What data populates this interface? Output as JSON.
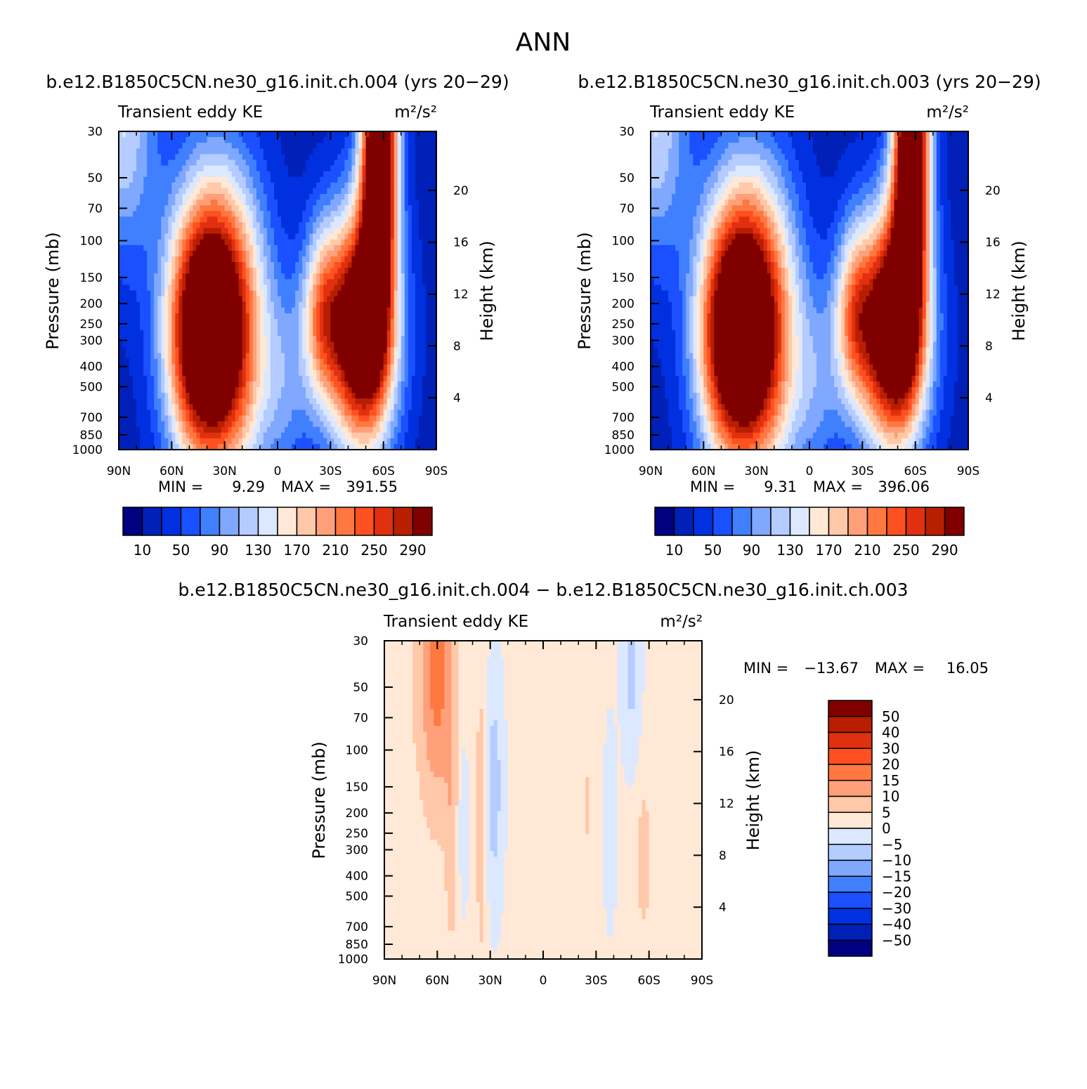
{
  "figure_title": "ANN",
  "colors": {
    "seq_palette": [
      "#000080",
      "#0020b8",
      "#0030e0",
      "#1a50ff",
      "#4080ff",
      "#80a8ff",
      "#b4ccff",
      "#dce8ff",
      "#ffe8d6",
      "#ffc8a8",
      "#ffa07a",
      "#ff7840",
      "#ff5020",
      "#e03010",
      "#b81e00",
      "#800000"
    ],
    "diff_palette": [
      "#000080",
      "#0020b8",
      "#0030e0",
      "#1a50ff",
      "#4080ff",
      "#80a8ff",
      "#b4ccff",
      "#dce8ff",
      "#ffe8d6",
      "#ffc8a8",
      "#ffa07a",
      "#ff7840",
      "#ff5020",
      "#e03010",
      "#b81e00",
      "#800000"
    ]
  },
  "chart_data": [
    {
      "type": "heatmap",
      "panel": "case",
      "title": "b.e12.B1850C5CN.ne30_g16.init.ch.004 (yrs 20−29)",
      "left_label": "Transient eddy KE",
      "units": "m²/s²",
      "xlabel": "",
      "ylabel": "Pressure (mb)",
      "ylabel_right": "Height (km)",
      "x_ticks": [
        "90N",
        "60N",
        "30N",
        "0",
        "30S",
        "60S",
        "90S"
      ],
      "y_ticks": [
        30,
        50,
        70,
        100,
        150,
        200,
        250,
        300,
        400,
        500,
        700,
        850,
        1000
      ],
      "y_ticks_right": [
        20,
        16,
        12,
        8,
        4
      ],
      "ylim": [
        30,
        1000
      ],
      "y_scale": "log",
      "min_label": "MIN =",
      "min_value": "9.29",
      "max_label": "MAX =",
      "max_value": "391.55",
      "levels": [
        10,
        30,
        50,
        70,
        90,
        110,
        130,
        150,
        170,
        190,
        210,
        230,
        250,
        270,
        290
      ],
      "colorbar_labels": [
        "10",
        "50",
        "90",
        "130",
        "170",
        "210",
        "250",
        "290"
      ],
      "features": [
        {
          "lat": 32,
          "p": 245,
          "value": 300,
          "sx": 17,
          "sy": 0.52
        },
        {
          "lat": 46,
          "p": 290,
          "value": 160,
          "sx": 13,
          "sy": 0.45
        },
        {
          "lat": -48,
          "p": 265,
          "value": 350,
          "sx": 13,
          "sy": 0.42
        },
        {
          "lat": -25,
          "p": 225,
          "value": 150,
          "sx": 8,
          "sy": 0.32
        },
        {
          "lat": -58,
          "p": 32,
          "value": 370,
          "sx": 7,
          "sy": 0.5
        },
        {
          "lat": -55,
          "p": 110,
          "value": 70,
          "sx": 5,
          "sy": 0.4
        },
        {
          "lat": 88,
          "p": 30,
          "value": 110,
          "sx": 14,
          "sy": 0.45
        },
        {
          "lat": -5,
          "p": 500,
          "value": 55,
          "sx": 10,
          "sy": 0.35
        },
        {
          "lat": 20,
          "p": 700,
          "value": 20,
          "sx": 12,
          "sy": 0.3
        }
      ]
    },
    {
      "type": "heatmap",
      "panel": "control",
      "title": "b.e12.B1850C5CN.ne30_g16.init.ch.003 (yrs 20−29)",
      "left_label": "Transient eddy KE",
      "units": "m²/s²",
      "xlabel": "",
      "ylabel": "Pressure (mb)",
      "ylabel_right": "Height (km)",
      "x_ticks": [
        "90N",
        "60N",
        "30N",
        "0",
        "30S",
        "60S",
        "90S"
      ],
      "y_ticks": [
        30,
        50,
        70,
        100,
        150,
        200,
        250,
        300,
        400,
        500,
        700,
        850,
        1000
      ],
      "y_ticks_right": [
        20,
        16,
        12,
        8,
        4
      ],
      "ylim": [
        30,
        1000
      ],
      "y_scale": "log",
      "min_label": "MIN =",
      "min_value": "9.31",
      "max_label": "MAX =",
      "max_value": "396.06",
      "levels": [
        10,
        30,
        50,
        70,
        90,
        110,
        130,
        150,
        170,
        190,
        210,
        230,
        250,
        270,
        290
      ],
      "colorbar_labels": [
        "10",
        "50",
        "90",
        "130",
        "170",
        "210",
        "250",
        "290"
      ],
      "features": [
        {
          "lat": 32,
          "p": 245,
          "value": 300,
          "sx": 17,
          "sy": 0.52
        },
        {
          "lat": 46,
          "p": 290,
          "value": 160,
          "sx": 13,
          "sy": 0.45
        },
        {
          "lat": -48,
          "p": 265,
          "value": 355,
          "sx": 13,
          "sy": 0.42
        },
        {
          "lat": -25,
          "p": 225,
          "value": 150,
          "sx": 8,
          "sy": 0.32
        },
        {
          "lat": -58,
          "p": 32,
          "value": 370,
          "sx": 7,
          "sy": 0.5
        },
        {
          "lat": -55,
          "p": 110,
          "value": 70,
          "sx": 5,
          "sy": 0.4
        },
        {
          "lat": 88,
          "p": 30,
          "value": 110,
          "sx": 14,
          "sy": 0.45
        },
        {
          "lat": -5,
          "p": 500,
          "value": 55,
          "sx": 10,
          "sy": 0.35
        },
        {
          "lat": 20,
          "p": 700,
          "value": 20,
          "sx": 12,
          "sy": 0.3
        }
      ]
    },
    {
      "type": "heatmap",
      "panel": "difference",
      "title": "b.e12.B1850C5CN.ne30_g16.init.ch.004 − b.e12.B1850C5CN.ne30_g16.init.ch.003",
      "left_label": "Transient eddy KE",
      "units": "m²/s²",
      "xlabel": "",
      "ylabel": "Pressure (mb)",
      "ylabel_right": "Height (km)",
      "x_ticks": [
        "90N",
        "60N",
        "30N",
        "0",
        "30S",
        "60S",
        "90S"
      ],
      "y_ticks": [
        30,
        50,
        70,
        100,
        150,
        200,
        250,
        300,
        400,
        500,
        700,
        850,
        1000
      ],
      "y_ticks_right": [
        20,
        16,
        12,
        8,
        4
      ],
      "ylim": [
        30,
        1000
      ],
      "y_scale": "log",
      "min_label": "MIN =",
      "min_value": "−13.67",
      "max_label": "MAX =",
      "max_value": "16.05",
      "levels": [
        -50,
        -40,
        -30,
        -20,
        -15,
        -10,
        -5,
        0,
        5,
        10,
        15,
        20,
        30,
        40,
        50
      ],
      "colorbar_labels": [
        "50",
        "40",
        "30",
        "20",
        "15",
        "10",
        "5",
        "0",
        "−5",
        "−10",
        "−15",
        "−20",
        "−30",
        "−40",
        "−50"
      ],
      "features": [
        {
          "lat": 60,
          "p": 40,
          "value": 16,
          "sx": 7,
          "sy": 0.5
        },
        {
          "lat": 28,
          "p": 150,
          "value": -9,
          "sx": 4,
          "sy": 0.45
        },
        {
          "lat": 35,
          "p": 200,
          "value": 7,
          "sx": 2.5,
          "sy": 0.6
        },
        {
          "lat": 52,
          "p": 300,
          "value": 6,
          "sx": 2.5,
          "sy": 0.4
        },
        {
          "lat": 45,
          "p": 230,
          "value": -6,
          "sx": 2,
          "sy": 0.3
        },
        {
          "lat": -38,
          "p": 230,
          "value": -6,
          "sx": 2.5,
          "sy": 0.35
        },
        {
          "lat": -50,
          "p": 40,
          "value": -8,
          "sx": 4,
          "sy": 0.35
        },
        {
          "lat": -57,
          "p": 330,
          "value": 6,
          "sx": 3,
          "sy": 0.3
        },
        {
          "lat": -25,
          "p": 190,
          "value": 5.5,
          "sx": 1.5,
          "sy": 0.15
        },
        {
          "lat": 85,
          "p": 50,
          "value": 3,
          "sx": 10,
          "sy": 0.6
        }
      ]
    }
  ]
}
